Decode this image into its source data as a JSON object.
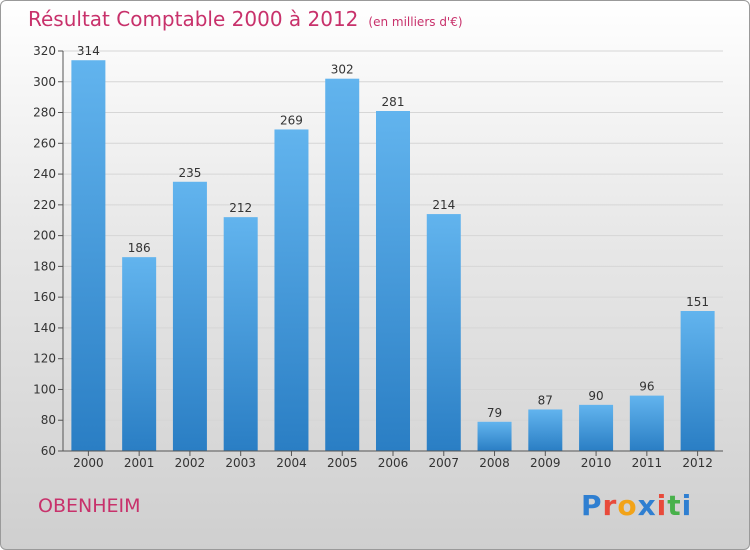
{
  "title": "Résultat Comptable 2000 à 2012",
  "unit": "(en milliers d'€)",
  "place": "OBENHEIM",
  "logo": {
    "text": "Proxiti",
    "letters": [
      {
        "ch": "P",
        "color": "#2f7fd1"
      },
      {
        "ch": "r",
        "color": "#e84a3b"
      },
      {
        "ch": "o",
        "color": "#f2a318"
      },
      {
        "ch": "x",
        "color": "#2f7fd1"
      },
      {
        "ch": "i",
        "color": "#e84a3b"
      },
      {
        "ch": "t",
        "color": "#48b14b"
      },
      {
        "ch": "i",
        "color": "#2f7fd1"
      }
    ]
  },
  "colors": {
    "bar_top": "#62b4ee",
    "bar_bottom": "#2a7ec4",
    "title": "#c8316b"
  },
  "chart_data": {
    "type": "bar",
    "categories": [
      "2000",
      "2001",
      "2002",
      "2003",
      "2004",
      "2005",
      "2006",
      "2007",
      "2008",
      "2009",
      "2010",
      "2011",
      "2012"
    ],
    "values": [
      314,
      186,
      235,
      212,
      269,
      302,
      281,
      214,
      79,
      87,
      90,
      96,
      151
    ],
    "ylim": [
      60,
      320
    ],
    "yticks": [
      60,
      80,
      100,
      120,
      140,
      160,
      180,
      200,
      220,
      240,
      260,
      280,
      300,
      320
    ],
    "grid": true,
    "legend": "none"
  }
}
